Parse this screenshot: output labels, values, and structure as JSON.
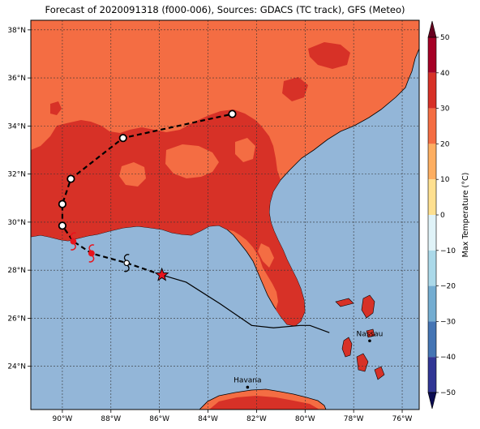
{
  "title": "Forecast of 2020091318 (f000-006), Sources: GDACS (TC track), GFS (Meteo)",
  "map": {
    "lon_range": [
      -91.3,
      -75.3
    ],
    "lat_range": [
      22.2,
      38.4
    ],
    "lon_ticks": [
      {
        "value": -90,
        "label": "90°W"
      },
      {
        "value": -88,
        "label": "88°W"
      },
      {
        "value": -86,
        "label": "86°W"
      },
      {
        "value": -84,
        "label": "84°W"
      },
      {
        "value": -82,
        "label": "82°W"
      },
      {
        "value": -80,
        "label": "80°W"
      },
      {
        "value": -78,
        "label": "78°W"
      },
      {
        "value": -76,
        "label": "76°W"
      }
    ],
    "lat_ticks": [
      {
        "value": 24,
        "label": "24°N"
      },
      {
        "value": 26,
        "label": "26°N"
      },
      {
        "value": 28,
        "label": "28°N"
      },
      {
        "value": 30,
        "label": "30°N"
      },
      {
        "value": 32,
        "label": "32°N"
      },
      {
        "value": 34,
        "label": "34°N"
      },
      {
        "value": 36,
        "label": "36°N"
      },
      {
        "value": 38,
        "label": "38°N"
      }
    ],
    "cities": [
      {
        "name": "Havana",
        "lon": -82.37,
        "lat": 23.13
      },
      {
        "name": "Nassau",
        "lon": -77.34,
        "lat": 25.06
      }
    ],
    "colors": {
      "ocean": "#93b6d8",
      "temp_30_40": "#d73127",
      "temp_20_30": "#f46d43",
      "coast": "#000000"
    }
  },
  "chart_data": {
    "type": "map",
    "variable": "Max Temperature (°C)",
    "current_position": {
      "lon": -85.9,
      "lat": 27.8
    },
    "forecast_track": [
      {
        "lon": -85.9,
        "lat": 27.8,
        "marker": "star"
      },
      {
        "lon": -87.35,
        "lat": 28.3,
        "marker": "hurricane"
      },
      {
        "lon": -88.8,
        "lat": 28.7,
        "marker": "hurricane-red"
      },
      {
        "lon": -89.55,
        "lat": 29.2,
        "marker": "hurricane-red"
      },
      {
        "lon": -90.0,
        "lat": 29.85,
        "marker": "circle"
      },
      {
        "lon": -90.0,
        "lat": 30.75,
        "marker": "circle"
      },
      {
        "lon": -89.65,
        "lat": 31.8,
        "marker": "circle"
      },
      {
        "lon": -87.5,
        "lat": 33.5,
        "marker": "circle"
      },
      {
        "lon": -83.0,
        "lat": 34.5,
        "marker": "circle"
      }
    ],
    "past_track": [
      {
        "lon": -85.9,
        "lat": 27.8
      },
      {
        "lon": -84.9,
        "lat": 27.5
      },
      {
        "lon": -83.5,
        "lat": 26.6
      },
      {
        "lon": -82.2,
        "lat": 25.7
      },
      {
        "lon": -81.3,
        "lat": 25.6
      },
      {
        "lon": -80.2,
        "lat": 25.7
      },
      {
        "lon": -79.8,
        "lat": 25.7
      },
      {
        "lon": -79.0,
        "lat": 25.4
      }
    ],
    "colorbar": {
      "label": "Max Temperature (°C)",
      "range": [
        -50,
        50
      ],
      "ticks": [
        "50",
        "40",
        "30",
        "20",
        "10",
        "0",
        "−10",
        "−20",
        "−30",
        "−40",
        "−50"
      ],
      "bands": [
        {
          "from": 40,
          "to": 50,
          "color": "#a50026"
        },
        {
          "from": 30,
          "to": 40,
          "color": "#d73127"
        },
        {
          "from": 20,
          "to": 30,
          "color": "#f46d43"
        },
        {
          "from": 10,
          "to": 20,
          "color": "#fdae61"
        },
        {
          "from": 0,
          "to": 10,
          "color": "#fee090"
        },
        {
          "from": -10,
          "to": 0,
          "color": "#e0f3f8"
        },
        {
          "from": -20,
          "to": -10,
          "color": "#abd9e9"
        },
        {
          "from": -30,
          "to": -20,
          "color": "#74add1"
        },
        {
          "from": -40,
          "to": -30,
          "color": "#4575b4"
        },
        {
          "from": -50,
          "to": -40,
          "color": "#313695"
        }
      ],
      "arrow_top_color": "#67001f",
      "arrow_bottom_color": "#0c0c52"
    }
  }
}
